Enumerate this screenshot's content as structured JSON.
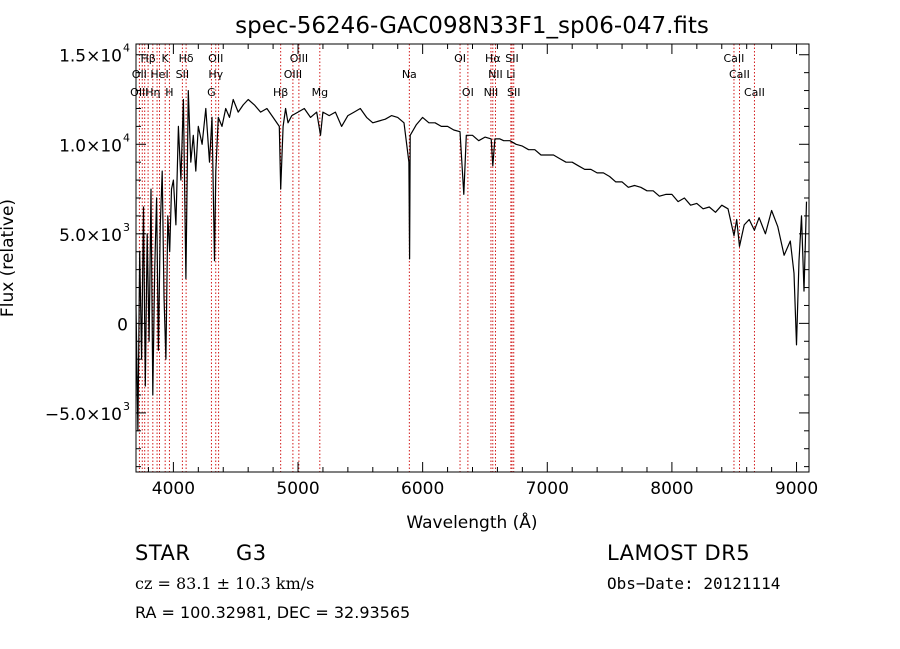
{
  "chart_data": {
    "type": "line",
    "title": "spec-56246-GAC098N33F1_sp06-047.fits",
    "xlabel": "Wavelength (Å)",
    "ylabel": "Flux (relative)",
    "xlim": [
      3700,
      9100
    ],
    "ylim": [
      -8300,
      15600
    ],
    "x_ticks": [
      4000,
      5000,
      6000,
      7000,
      8000,
      9000
    ],
    "x_tick_labels": [
      "4000",
      "5000",
      "6000",
      "7000",
      "8000",
      "9000"
    ],
    "y_ticks": [
      15000,
      10000,
      5000,
      0,
      -5000
    ],
    "y_tick_labels": [
      {
        "mantissa": "1.5×10",
        "exp": "4"
      },
      {
        "mantissa": "1.0×10",
        "exp": "4"
      },
      {
        "mantissa": "5.0×10",
        "exp": "3"
      },
      {
        "mantissa": "0",
        "exp": ""
      },
      {
        "mantissa": "−5.0×10",
        "exp": "3"
      }
    ],
    "grid": false,
    "line_color": "#000000",
    "marker_color": "#cc0000",
    "series": [
      {
        "x": [
          3700,
          3715,
          3730,
          3745,
          3760,
          3775,
          3790,
          3805,
          3820,
          3835,
          3850,
          3865,
          3880,
          3895,
          3910,
          3925,
          3940,
          3955,
          3970,
          3985,
          4000,
          4020,
          4040,
          4060,
          4080,
          4100,
          4120,
          4140,
          4160,
          4180,
          4200,
          4230,
          4260,
          4290,
          4310,
          4330,
          4340,
          4360,
          4390,
          4420,
          4450,
          4480,
          4520,
          4560,
          4600,
          4650,
          4700,
          4750,
          4800,
          4850,
          4861,
          4880,
          4900,
          4920,
          4950,
          5000,
          5050,
          5100,
          5150,
          5180,
          5200,
          5250,
          5300,
          5350,
          5400,
          5450,
          5500,
          5550,
          5600,
          5650,
          5700,
          5750,
          5800,
          5850,
          5890,
          5895,
          5900,
          5950,
          6000,
          6050,
          6100,
          6150,
          6200,
          6250,
          6300,
          6330,
          6350,
          6400,
          6450,
          6500,
          6550,
          6563,
          6580,
          6620,
          6650,
          6700,
          6750,
          6800,
          6850,
          6900,
          6950,
          7000,
          7050,
          7100,
          7150,
          7200,
          7250,
          7300,
          7350,
          7400,
          7450,
          7500,
          7550,
          7600,
          7650,
          7700,
          7750,
          7800,
          7850,
          7900,
          7950,
          8000,
          8050,
          8100,
          8150,
          8200,
          8250,
          8300,
          8350,
          8400,
          8450,
          8498,
          8520,
          8542,
          8580,
          8620,
          8662,
          8700,
          8750,
          8800,
          8850,
          8900,
          8950,
          8980,
          9000,
          9020,
          9040,
          9060,
          9080
        ],
        "y": [
          1000,
          -6000,
          4000,
          -2000,
          6500,
          -3500,
          5000,
          -1000,
          7500,
          -4000,
          3000,
          7000,
          -1500,
          5500,
          8500,
          1500,
          -2000,
          6000,
          4000,
          7500,
          8000,
          5500,
          11000,
          8000,
          12500,
          2500,
          13000,
          9000,
          10500,
          8500,
          11000,
          10000,
          12000,
          9000,
          11500,
          3500,
          8500,
          11500,
          11000,
          12000,
          11500,
          12500,
          11800,
          12200,
          12500,
          12200,
          11800,
          12000,
          11500,
          11000,
          7500,
          11000,
          12000,
          11200,
          11600,
          11800,
          12000,
          11500,
          11800,
          10500,
          11800,
          11600,
          11800,
          11000,
          11600,
          11800,
          12000,
          11500,
          11200,
          11300,
          11400,
          11600,
          11500,
          11200,
          9000,
          3600,
          10500,
          11100,
          11500,
          11200,
          11200,
          11000,
          11000,
          10800,
          10700,
          7200,
          10500,
          10500,
          10200,
          10400,
          10300,
          8800,
          10300,
          10300,
          10200,
          10200,
          10000,
          9900,
          9700,
          9700,
          9400,
          9400,
          9400,
          9200,
          9000,
          9000,
          8800,
          8600,
          8600,
          8400,
          8400,
          8200,
          7900,
          7900,
          7600,
          7700,
          7600,
          7400,
          7400,
          7100,
          7200,
          7200,
          6800,
          7000,
          6600,
          6700,
          6400,
          6500,
          6200,
          6600,
          6400,
          4900,
          5800,
          4300,
          5500,
          5800,
          5200,
          5900,
          5000,
          6300,
          5400,
          3800,
          4600,
          2800,
          -1200,
          3500,
          6000,
          1800,
          6800
        ]
      }
    ],
    "line_markers": [
      {
        "label": "Hβ",
        "x": 3797,
        "row": 1
      },
      {
        "label": "K",
        "x": 3934,
        "row": 1
      },
      {
        "label": "Hδ",
        "x": 4102,
        "row": 1
      },
      {
        "label": "OII",
        "x": 4340,
        "row": 1
      },
      {
        "label": "OIII",
        "x": 5007,
        "row": 1
      },
      {
        "label": "OI",
        "x": 6300,
        "row": 1
      },
      {
        "label": "Hα",
        "x": 6563,
        "row": 1
      },
      {
        "label": "SII",
        "x": 6717,
        "row": 1
      },
      {
        "label": "CaII",
        "x": 8498,
        "row": 1
      },
      {
        "label": "OII",
        "x": 3727,
        "row": 2
      },
      {
        "label": "HeI",
        "x": 3889,
        "row": 2
      },
      {
        "label": "SII",
        "x": 4072,
        "row": 2
      },
      {
        "label": "Hγ",
        "x": 4340,
        "row": 2
      },
      {
        "label": "OIII",
        "x": 4959,
        "row": 2
      },
      {
        "label": "Na",
        "x": 5893,
        "row": 2
      },
      {
        "label": "NII",
        "x": 6584,
        "row": 2
      },
      {
        "label": "Li",
        "x": 6708,
        "row": 2
      },
      {
        "label": "CaII",
        "x": 8542,
        "row": 2
      },
      {
        "label": "OIII",
        "x": 3727,
        "row": 3
      },
      {
        "label": "Hη",
        "x": 3835,
        "row": 3
      },
      {
        "label": "H",
        "x": 3968,
        "row": 3
      },
      {
        "label": "G",
        "x": 4305,
        "row": 3
      },
      {
        "label": "Hβ",
        "x": 4861,
        "row": 3
      },
      {
        "label": "Mg",
        "x": 5175,
        "row": 3
      },
      {
        "label": "OI",
        "x": 6363,
        "row": 3
      },
      {
        "label": "NII",
        "x": 6548,
        "row": 3
      },
      {
        "label": "SII",
        "x": 6731,
        "row": 3
      },
      {
        "label": "CaII",
        "x": 8662,
        "row": 3
      }
    ],
    "marker_lines_x": [
      3727,
      3750,
      3770,
      3797,
      3835,
      3869,
      3889,
      3934,
      3968,
      4072,
      4102,
      4305,
      4340,
      4363,
      4861,
      4959,
      5007,
      5175,
      5893,
      6300,
      6363,
      6548,
      6563,
      6584,
      6708,
      6717,
      6731,
      8498,
      8542,
      8662
    ]
  },
  "info": {
    "object_class": "STAR",
    "subclass": "G3",
    "survey": "LAMOST DR5",
    "velocity": "cz = 83.1 ± 10.3 km/s",
    "obs_date": "Obs−Date: 20121114",
    "coords": "RA = 100.32981, DEC =  32.93565"
  }
}
